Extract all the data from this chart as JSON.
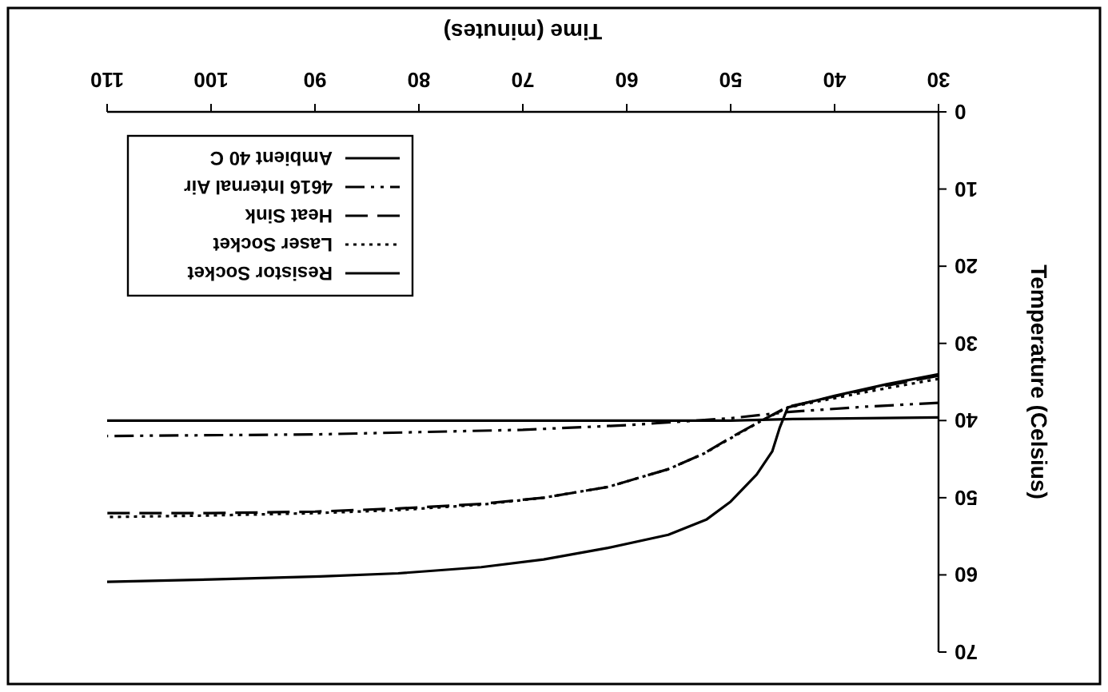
{
  "chart_data": {
    "type": "line",
    "xlabel": "Time (minutes)",
    "ylabel": "Temperature (Celsius)",
    "xlim": [
      110,
      30
    ],
    "ylim": [
      70,
      0
    ],
    "xticks": [
      30,
      40,
      50,
      60,
      70,
      80,
      90,
      100,
      110
    ],
    "yticks": [
      0,
      10,
      20,
      30,
      40,
      50,
      60,
      70
    ],
    "grid": false,
    "legend": "top left",
    "marker": "none",
    "series": [
      {
        "name": "Resistor Socket",
        "color": "#000000",
        "line_style": "solid",
        "x": [
          30,
          35,
          40,
          44.5,
          45.3,
          46,
          47.5,
          50,
          52.3,
          56,
          61.8,
          68,
          74,
          82,
          89.5,
          100,
          110
        ],
        "values": [
          34,
          35.3,
          36.8,
          38.3,
          41,
          44,
          47,
          50.5,
          52.8,
          54.8,
          56.5,
          58,
          59,
          59.8,
          60.2,
          60.6,
          60.9
        ]
      },
      {
        "name": "Laser Socket",
        "color": "#000000",
        "line_style": "dotted",
        "x": [
          30,
          37,
          44.5,
          47,
          50,
          52.6,
          56,
          61.8,
          68,
          74,
          82,
          90,
          100,
          110
        ],
        "values": [
          34.6,
          36.3,
          38.3,
          40,
          42.3,
          44.3,
          46.3,
          48.6,
          50,
          50.9,
          51.6,
          52,
          52.3,
          52.5
        ]
      },
      {
        "name": "Heat Sink",
        "color": "#000000",
        "line_style": "dashed",
        "x": [
          30,
          37,
          44.5,
          47,
          50,
          52.6,
          56,
          61.8,
          68,
          74,
          82,
          90,
          100,
          110
        ],
        "values": [
          34.2,
          36,
          38.2,
          40,
          42.2,
          44.3,
          46.3,
          48.6,
          50,
          50.8,
          51.4,
          51.8,
          52,
          52
        ]
      },
      {
        "name": "4616 Internal Air",
        "color": "#000000",
        "line_style": "dashdot",
        "x": [
          30,
          37,
          44.5,
          50,
          60,
          70,
          80,
          90,
          110
        ],
        "values": [
          37.7,
          38.2,
          38.9,
          39.7,
          40.6,
          41.2,
          41.5,
          41.8,
          42
        ]
      },
      {
        "name": "Ambient 40 C",
        "color": "#000000",
        "line_style": "solid",
        "x": [
          30,
          44,
          50,
          110
        ],
        "values": [
          39.6,
          39.8,
          40,
          40
        ]
      }
    ]
  }
}
